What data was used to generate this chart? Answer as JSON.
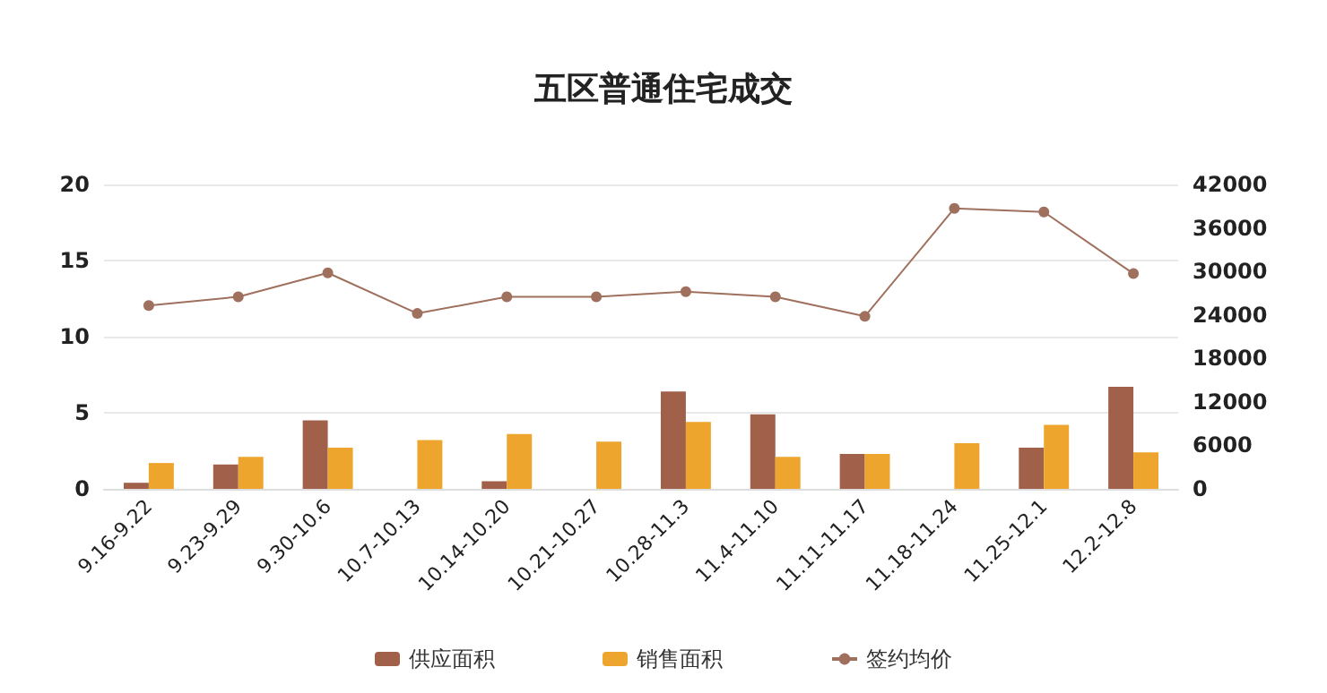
{
  "chart_data": {
    "type": "bar",
    "title": "五区普通住宅成交",
    "categories": [
      "9.16-9.22",
      "9.23-9.29",
      "9.30-10.6",
      "10.7-10.13",
      "10.14-10.20",
      "10.21-10.27",
      "10.28-11.3",
      "11.4-11.10",
      "11.11-11.17",
      "11.18-11.24",
      "11.25-12.1",
      "12.2-12.8"
    ],
    "series": [
      {
        "name": "供应面积",
        "color": "#a0604a",
        "values": [
          0.4,
          1.6,
          4.5,
          0,
          0.5,
          0,
          6.4,
          4.9,
          2.3,
          0,
          2.7,
          6.7
        ]
      },
      {
        "name": "销售面积",
        "color": "#eea52e",
        "values": [
          1.7,
          2.1,
          2.7,
          3.2,
          3.6,
          3.1,
          4.4,
          2.1,
          2.3,
          3.0,
          4.2,
          2.4
        ]
      },
      {
        "name": "签约均价",
        "type": "line",
        "axis": "y2",
        "color": "#a0705e",
        "values": [
          25300,
          26500,
          29800,
          24200,
          26500,
          26500,
          27200,
          26500,
          23800,
          38700,
          38200,
          29700
        ]
      }
    ],
    "ylim": [
      0,
      20
    ],
    "yticks": [
      0,
      5,
      10,
      15,
      20
    ],
    "y2lim": [
      0,
      42000
    ],
    "y2ticks": [
      0,
      6000,
      12000,
      18000,
      24000,
      30000,
      36000,
      42000
    ],
    "grid": "y",
    "legend": "bottom",
    "marker": "circle"
  }
}
